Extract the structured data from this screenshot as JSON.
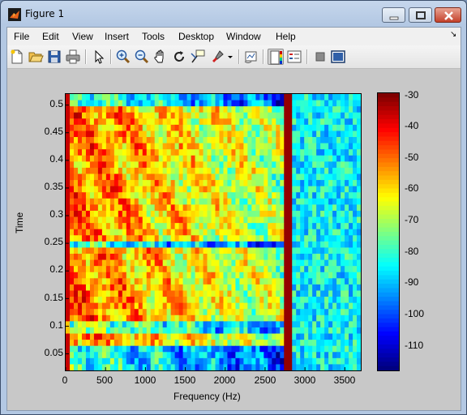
{
  "window": {
    "title": "Figure 1"
  },
  "menu": [
    "File",
    "Edit",
    "View",
    "Insert",
    "Tools",
    "Desktop",
    "Window",
    "Help"
  ],
  "toolbar": [
    {
      "name": "new-figure-icon"
    },
    {
      "name": "open-file-icon"
    },
    {
      "name": "save-icon"
    },
    {
      "name": "print-icon"
    },
    {
      "name": "edit-plot-arrow-icon"
    },
    {
      "name": "zoom-in-icon"
    },
    {
      "name": "zoom-out-icon"
    },
    {
      "name": "pan-hand-icon"
    },
    {
      "name": "rotate-3d-icon"
    },
    {
      "name": "data-cursor-icon"
    },
    {
      "name": "brush-icon"
    },
    {
      "name": "link-plot-icon"
    },
    {
      "name": "colorbar-icon"
    },
    {
      "name": "legend-icon"
    },
    {
      "name": "hide-plot-tools-icon"
    },
    {
      "name": "show-plot-tools-icon"
    }
  ],
  "chart_data": {
    "type": "heatmap",
    "colormap": "jet",
    "xlabel": "Frequency (Hz)",
    "ylabel": "Time",
    "xlim": [
      0,
      3700
    ],
    "ylim": [
      0.02,
      0.52
    ],
    "xticks": [
      0,
      500,
      1000,
      1500,
      2000,
      2500,
      3000,
      3500
    ],
    "yticks": [
      0.05,
      0.1,
      0.15,
      0.2,
      0.25,
      0.3,
      0.35,
      0.4,
      0.45,
      0.5
    ],
    "colorbar": {
      "range": [
        -120,
        -30
      ],
      "ticks": [
        -30,
        -40,
        -50,
        -60,
        -70,
        -80,
        -90,
        -100,
        -110
      ]
    },
    "features": {
      "strong_line_hz": 2780,
      "high_energy_time_bands": [
        [
          0.07,
          0.24
        ],
        [
          0.25,
          0.5
        ]
      ]
    }
  }
}
